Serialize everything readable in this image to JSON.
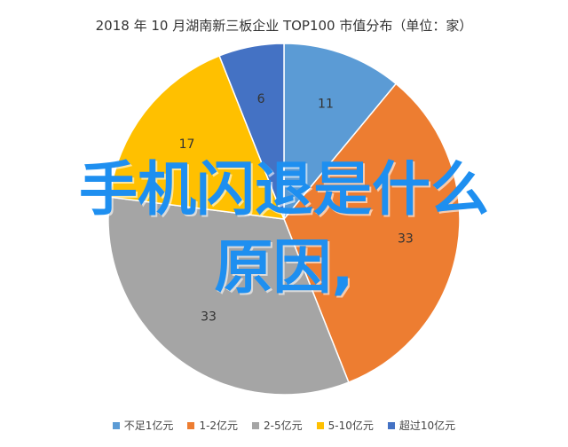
{
  "chart_data": {
    "type": "pie",
    "title": "2018 年 10 月湖南新三板企业 TOP100 市值分布（单位：家）",
    "categories": [
      "不足1亿元",
      "1-2亿元",
      "2-5亿元",
      "5-10亿元",
      "超过10亿元"
    ],
    "values": [
      11,
      33,
      33,
      17,
      6
    ],
    "colors": [
      "#5b9bd5",
      "#ed7d31",
      "#a5a5a5",
      "#ffc000",
      "#4472c4"
    ],
    "legend_position": "bottom"
  },
  "overlay": {
    "line1": "手机闪退是什么",
    "line2": "原因,"
  }
}
